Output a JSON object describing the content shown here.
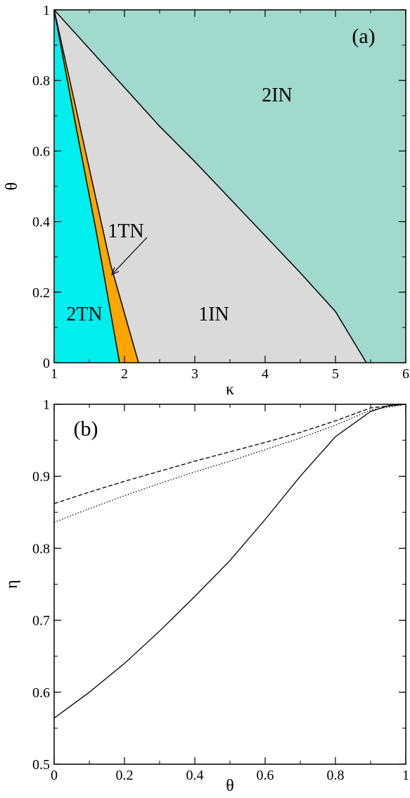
{
  "chart_data": [
    {
      "type": "area",
      "panel_label": "(a)",
      "xlabel": "κ",
      "ylabel": "θ",
      "xlim": [
        1,
        6
      ],
      "ylim": [
        0,
        1
      ],
      "x_ticks": [
        1,
        2,
        3,
        4,
        5,
        6
      ],
      "y_ticks": [
        0,
        0.2,
        0.4,
        0.6,
        0.8,
        1
      ],
      "x_tick_labels": [
        "1",
        "2",
        "3",
        "4",
        "5",
        "6"
      ],
      "y_tick_labels": [
        "0",
        "0.2",
        "0.4",
        "0.6",
        "0.8",
        "1"
      ],
      "colors": {
        "2IN": "#a2d9ce",
        "1IN": "#dadada",
        "1TN": "#ffa500",
        "2TN": "#00eeee",
        "line": "#000000"
      },
      "boundaries": [
        {
          "name": "2TN|1TN",
          "points": [
            [
              1.0,
              1.0
            ],
            [
              1.3,
              0.68
            ],
            [
              1.6,
              0.37
            ],
            [
              1.93,
              0.0
            ]
          ]
        },
        {
          "name": "1TN|1IN",
          "points": [
            [
              1.0,
              1.0
            ],
            [
              1.4,
              0.64
            ],
            [
              1.8,
              0.28
            ],
            [
              2.2,
              0.0
            ]
          ]
        },
        {
          "name": "1IN|2IN",
          "points": [
            [
              1.0,
              1.0
            ],
            [
              1.5,
              0.89
            ],
            [
              2.0,
              0.78
            ],
            [
              2.5,
              0.67
            ],
            [
              3.0,
              0.57
            ],
            [
              3.5,
              0.465
            ],
            [
              4.0,
              0.36
            ],
            [
              4.5,
              0.255
            ],
            [
              5.0,
              0.145
            ],
            [
              5.44,
              0.0
            ]
          ]
        }
      ],
      "regions": [
        {
          "name": "2TN",
          "label": "2TN",
          "label_at": [
            1.43,
            0.14
          ]
        },
        {
          "name": "1TN",
          "label": "1TN",
          "label_at": [
            2.02,
            0.375
          ]
        },
        {
          "name": "1IN",
          "label": "1IN",
          "label_at": [
            3.27,
            0.14
          ]
        },
        {
          "name": "2IN",
          "label": "2IN",
          "label_at": [
            4.17,
            0.76
          ]
        }
      ],
      "annotation_arrow": {
        "label": "1TN",
        "from": [
          2.32,
          0.355
        ],
        "to": [
          1.82,
          0.25
        ]
      }
    },
    {
      "type": "line",
      "panel_label": "(b)",
      "xlabel": "θ",
      "ylabel": "η",
      "xlim": [
        0,
        1
      ],
      "ylim": [
        0.5,
        1
      ],
      "x_ticks": [
        0,
        0.2,
        0.4,
        0.6,
        0.8,
        1
      ],
      "y_ticks": [
        0.5,
        0.6,
        0.7,
        0.8,
        0.9,
        1
      ],
      "x_tick_labels": [
        "0",
        "0.2",
        "0.4",
        "0.6",
        "0.8",
        "1"
      ],
      "y_tick_labels": [
        "0.5",
        "0.6",
        "0.7",
        "0.8",
        "0.9",
        "1"
      ],
      "series": [
        {
          "style": "dashed",
          "x": [
            0,
            0.1,
            0.2,
            0.3,
            0.4,
            0.5,
            0.6,
            0.7,
            0.8,
            0.9,
            1.0
          ],
          "y": [
            0.862,
            0.878,
            0.893,
            0.907,
            0.921,
            0.934,
            0.947,
            0.961,
            0.977,
            0.995,
            1.0
          ]
        },
        {
          "style": "dotted",
          "x": [
            0,
            0.1,
            0.2,
            0.3,
            0.4,
            0.5,
            0.6,
            0.7,
            0.8,
            0.9,
            1.0
          ],
          "y": [
            0.836,
            0.855,
            0.873,
            0.89,
            0.906,
            0.921,
            0.937,
            0.953,
            0.971,
            0.992,
            1.0
          ]
        },
        {
          "style": "solid",
          "x": [
            0,
            0.1,
            0.2,
            0.3,
            0.4,
            0.5,
            0.6,
            0.7,
            0.8,
            0.9,
            0.95,
            1.0
          ],
          "y": [
            0.564,
            0.6,
            0.64,
            0.685,
            0.733,
            0.783,
            0.84,
            0.9,
            0.955,
            0.99,
            0.998,
            1.0
          ]
        }
      ]
    }
  ]
}
